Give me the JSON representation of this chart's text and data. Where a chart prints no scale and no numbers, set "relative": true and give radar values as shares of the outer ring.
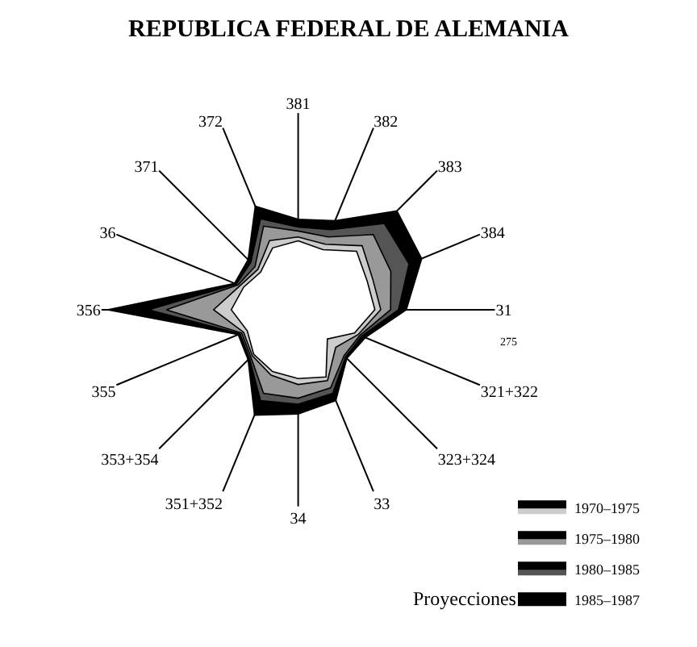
{
  "chart_data": {
    "type": "radar",
    "title": "REPUBLICA FEDERAL DE ALEMANIA",
    "relative": true,
    "categories": [
      "381",
      "382",
      "383",
      "384",
      "31",
      "321+322",
      "323+324",
      "33",
      "34",
      "351+352",
      "353+354",
      "355",
      "356",
      "36",
      "371",
      "372"
    ],
    "series": [
      {
        "name": "1985–1987",
        "color": "#000000",
        "values": [
          0.46,
          0.49,
          0.71,
          0.68,
          0.55,
          0.37,
          0.35,
          0.5,
          0.53,
          0.58,
          0.36,
          0.33,
          0.97,
          0.35,
          0.36,
          0.57
        ]
      },
      {
        "name": "1980–1985",
        "color": "#555555",
        "values": [
          0.42,
          0.44,
          0.62,
          0.61,
          0.51,
          0.35,
          0.34,
          0.46,
          0.48,
          0.5,
          0.35,
          0.32,
          0.76,
          0.34,
          0.34,
          0.5
        ]
      },
      {
        "name": "1975–1980",
        "color": "#999999",
        "values": [
          0.4,
          0.4,
          0.54,
          0.51,
          0.47,
          0.34,
          0.33,
          0.43,
          0.45,
          0.46,
          0.34,
          0.31,
          0.67,
          0.33,
          0.31,
          0.46
        ]
      },
      {
        "name": "1970–1975",
        "color": "#cccccc",
        "values": [
          0.37,
          0.36,
          0.46,
          0.41,
          0.42,
          0.33,
          0.27,
          0.39,
          0.38,
          0.36,
          0.33,
          0.3,
          0.43,
          0.32,
          0.29,
          0.38
        ]
      },
      {
        "color": "#ffffff",
        "values": [
          0.35,
          0.33,
          0.42,
          0.38,
          0.39,
          0.31,
          0.21,
          0.37,
          0.35,
          0.34,
          0.32,
          0.28,
          0.34,
          0.3,
          0.27,
          0.34
        ]
      }
    ],
    "legend": "bottom right",
    "annotations": [
      "275",
      "Proyecciones"
    ]
  }
}
